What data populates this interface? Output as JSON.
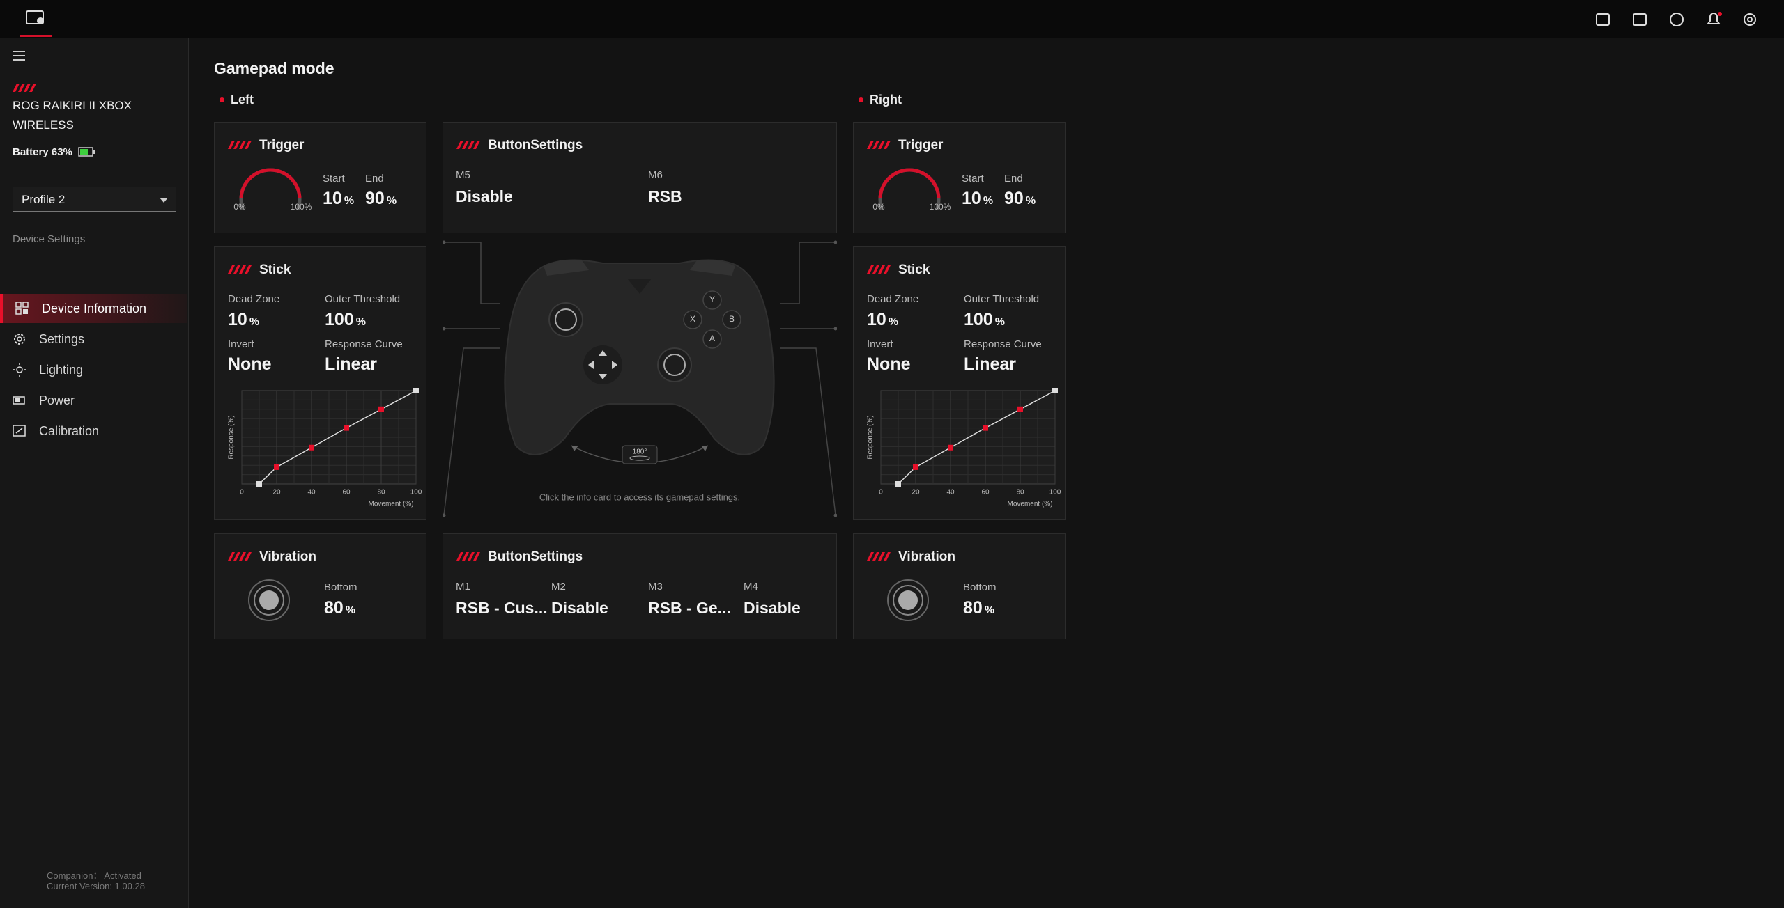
{
  "sidebar": {
    "device_name": "ROG RAIKIRI II XBOX WIRELESS",
    "battery": "Battery 63%",
    "profile": "Profile 2",
    "section": "Device Settings",
    "nav": [
      "Device Information",
      "Settings",
      "Lighting",
      "Power",
      "Calibration"
    ],
    "companion": "Companion： Activated",
    "version": "Current Version: 1.00.28"
  },
  "main": {
    "title": "Gamepad mode",
    "left": {
      "label": "Left",
      "trigger": {
        "title": "Trigger",
        "min_label": "0%",
        "max_label": "100%",
        "start_label": "Start",
        "start": 10,
        "end_label": "End",
        "end": 90,
        "unit": "%"
      },
      "stick": {
        "title": "Stick",
        "dead_zone_label": "Dead Zone",
        "dead_zone": 10,
        "outer_label": "Outer Threshold",
        "outer": 100,
        "unit": "%",
        "invert_label": "Invert",
        "invert": "None",
        "curve_label": "Response Curve",
        "curve": "Linear",
        "chart": {
          "x": [
            10,
            20,
            40,
            60,
            80,
            100
          ],
          "y": [
            0,
            18,
            39,
            60,
            80,
            100
          ],
          "xlim": [
            0,
            100
          ],
          "ylim": [
            0,
            100
          ],
          "xticks": [
            0,
            20,
            40,
            60,
            80,
            100
          ],
          "xlabel": "Movement (%)",
          "ylabel": "Response (%)"
        }
      },
      "vibration": {
        "title": "Vibration",
        "label": "Bottom",
        "value": 80,
        "unit": "%"
      }
    },
    "right": {
      "label": "Right",
      "trigger": {
        "title": "Trigger",
        "min_label": "0%",
        "max_label": "100%",
        "start_label": "Start",
        "start": 10,
        "end_label": "End",
        "end": 90,
        "unit": "%"
      },
      "stick": {
        "title": "Stick",
        "dead_zone_label": "Dead Zone",
        "dead_zone": 10,
        "outer_label": "Outer Threshold",
        "outer": 100,
        "unit": "%",
        "invert_label": "Invert",
        "invert": "None",
        "curve_label": "Response Curve",
        "curve": "Linear",
        "chart": {
          "x": [
            10,
            20,
            40,
            60,
            80,
            100
          ],
          "y": [
            0,
            18,
            39,
            60,
            80,
            100
          ],
          "xlim": [
            0,
            100
          ],
          "ylim": [
            0,
            100
          ],
          "xticks": [
            0,
            20,
            40,
            60,
            80,
            100
          ],
          "xlabel": "Movement (%)",
          "ylabel": "Response (%)"
        }
      },
      "vibration": {
        "title": "Vibration",
        "label": "Bottom",
        "value": 80,
        "unit": "%"
      }
    },
    "button_settings_top": {
      "title": "ButtonSettings",
      "items": [
        {
          "label": "M5",
          "value": "Disable"
        },
        {
          "label": "M6",
          "value": "RSB"
        }
      ]
    },
    "button_settings_bottom": {
      "title": "ButtonSettings",
      "items": [
        {
          "label": "M1",
          "value": "RSB - Cus..."
        },
        {
          "label": "M2",
          "value": "Disable"
        },
        {
          "label": "M3",
          "value": "RSB - Ge..."
        },
        {
          "label": "M4",
          "value": "Disable"
        }
      ]
    },
    "controller": {
      "buttons": [
        "Y",
        "X",
        "B",
        "A"
      ],
      "rotate": "180°",
      "hint": "Click the info card to access its gamepad settings."
    }
  }
}
